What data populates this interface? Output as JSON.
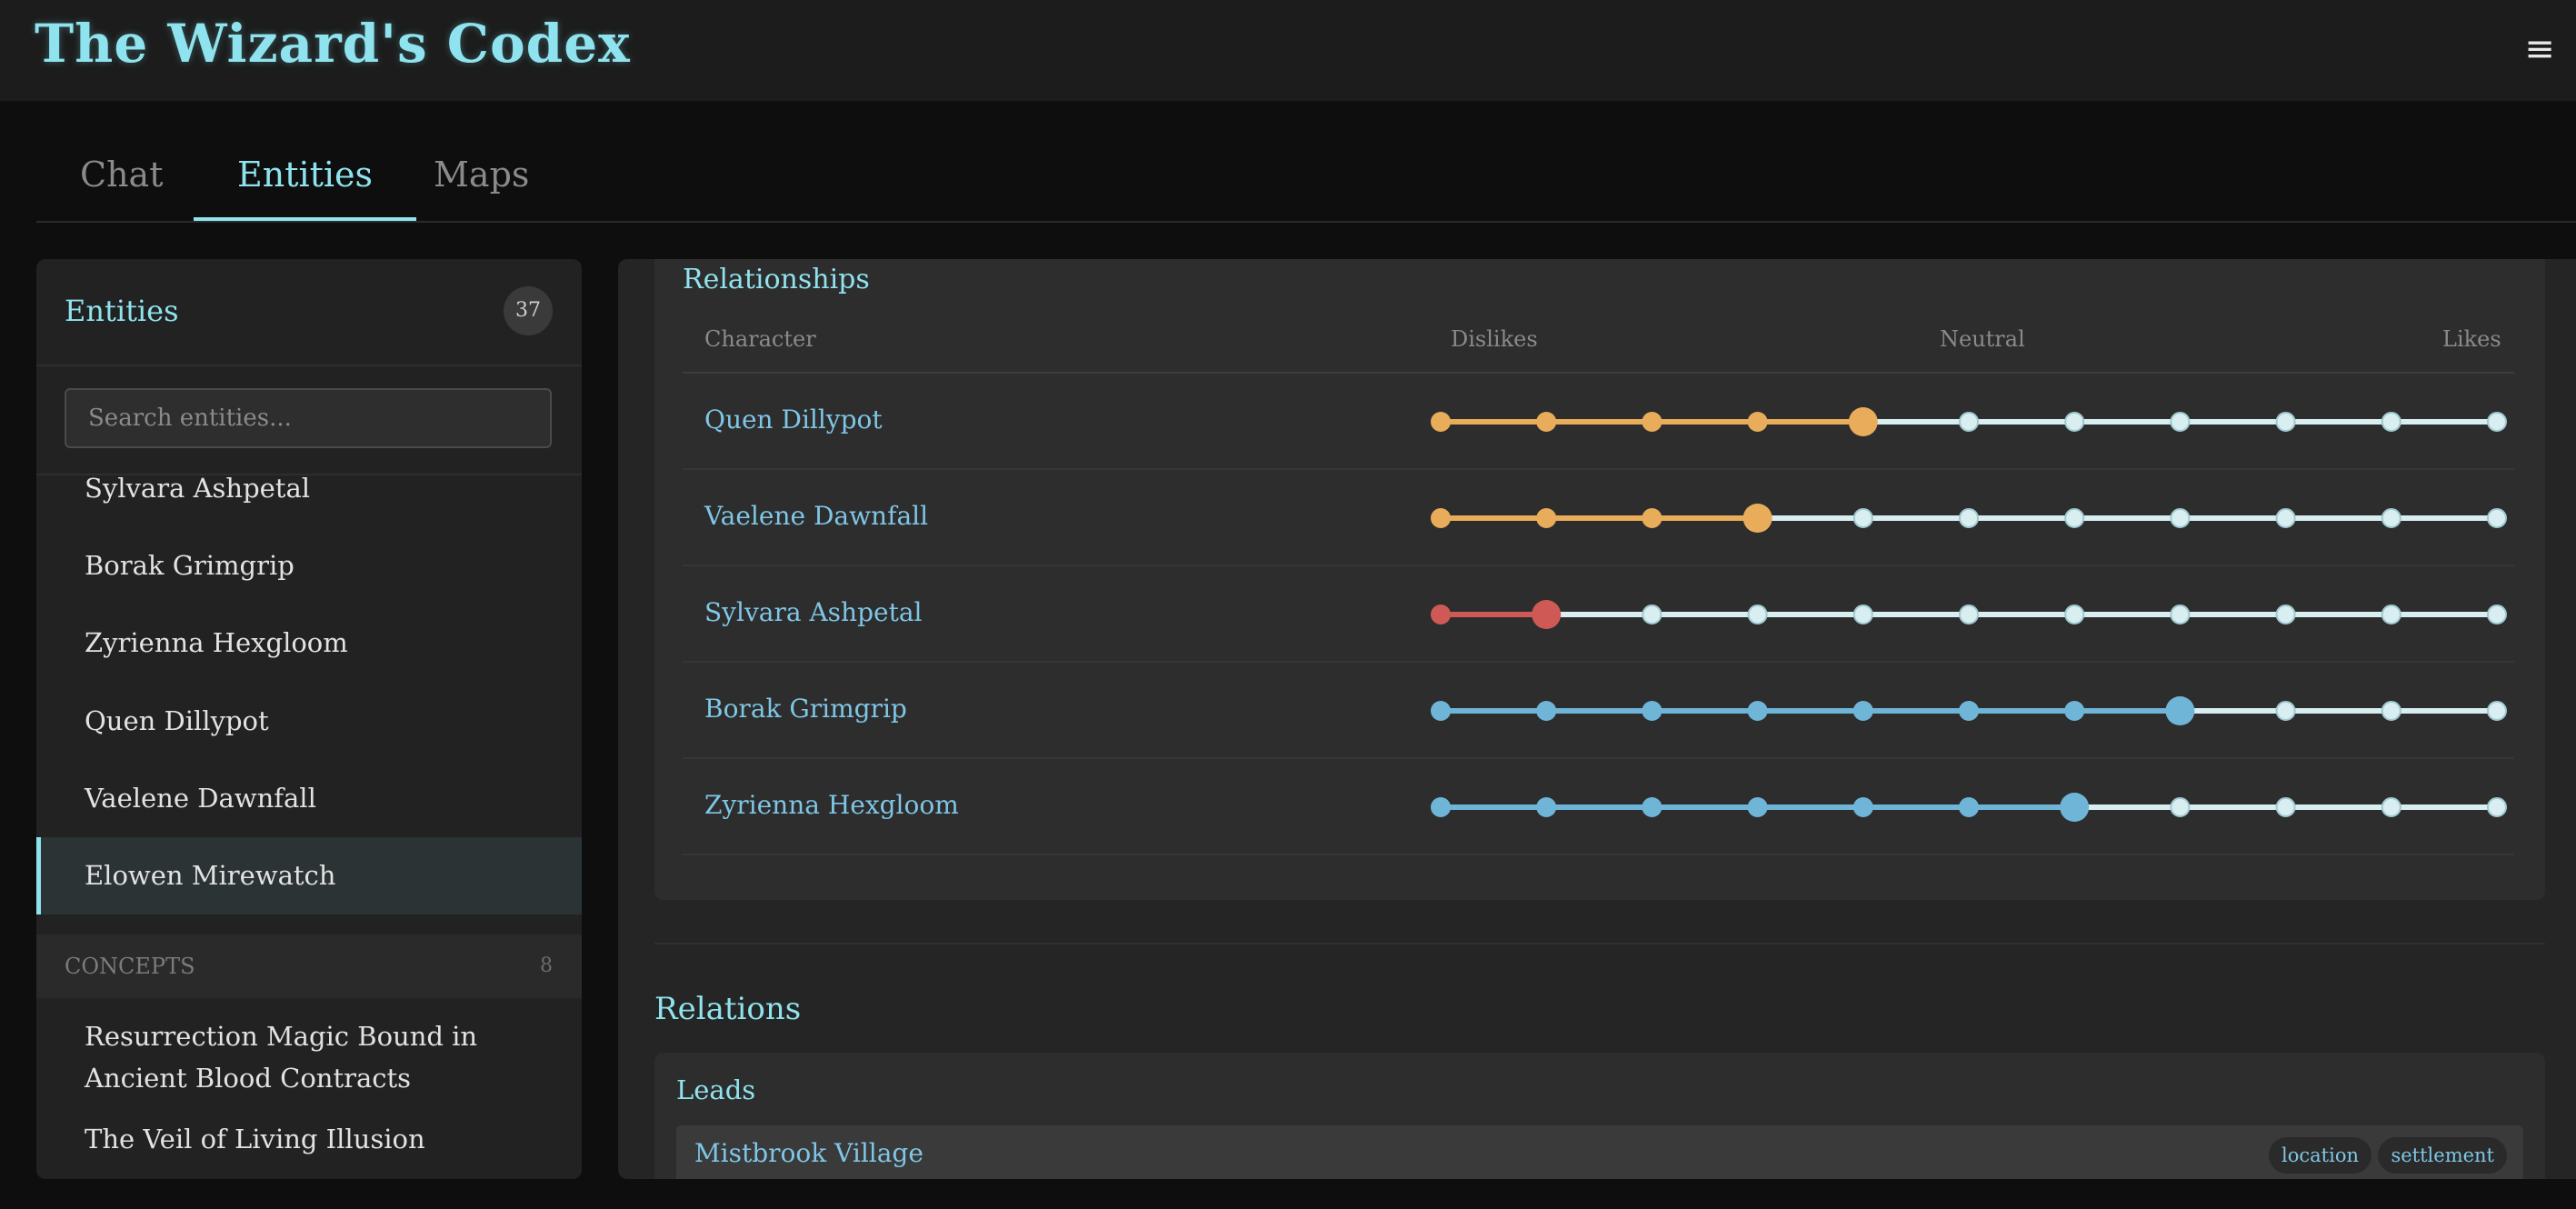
{
  "app": {
    "title": "The Wizard's Codex",
    "menu_icon": "hamburger-icon"
  },
  "tabs": [
    {
      "label": "Chat",
      "active": false
    },
    {
      "label": "Entities",
      "active": true
    },
    {
      "label": "Maps",
      "active": false
    }
  ],
  "sidebar": {
    "title": "Entities",
    "count": "37",
    "search_placeholder": "Search entities...",
    "items": [
      {
        "label": "Sylvara Ashpetal",
        "active": false
      },
      {
        "label": "Borak Grimgrip",
        "active": false
      },
      {
        "label": "Zyrienna Hexgloom",
        "active": false
      },
      {
        "label": "Quen Dillypot",
        "active": false
      },
      {
        "label": "Vaelene Dawnfall",
        "active": false
      },
      {
        "label": "Elowen Mirewatch",
        "active": true
      }
    ],
    "concepts": {
      "label": "CONCEPTS",
      "count": "8",
      "items": [
        {
          "label": "Resurrection Magic Bound in Ancient Blood Contracts"
        },
        {
          "label": "The Veil of Living Illusion"
        }
      ]
    }
  },
  "relationships": {
    "title": "Relationships",
    "headers": {
      "character": "Character",
      "dislikes": "Dislikes",
      "neutral": "Neutral",
      "likes": "Likes"
    },
    "scale_steps": 11,
    "colors": {
      "dislike_mild": "#e8ac5a",
      "dislike_strong": "#cf5a55",
      "like": "#6fb5d8",
      "empty": "#d9eef0"
    },
    "rows": [
      {
        "name": "Quen Dillypot",
        "level": 4,
        "tone": "dislike_mild"
      },
      {
        "name": "Vaelene Dawnfall",
        "level": 3,
        "tone": "dislike_mild"
      },
      {
        "name": "Sylvara Ashpetal",
        "level": 1,
        "tone": "dislike_strong"
      },
      {
        "name": "Borak Grimgrip",
        "level": 7,
        "tone": "like"
      },
      {
        "name": "Zyrienna Hexgloom",
        "level": 6,
        "tone": "like"
      }
    ]
  },
  "relations": {
    "title": "Relations",
    "leads": {
      "title": "Leads",
      "items": [
        {
          "name": "Mistbrook Village",
          "tags": [
            "location",
            "settlement"
          ]
        }
      ]
    }
  }
}
